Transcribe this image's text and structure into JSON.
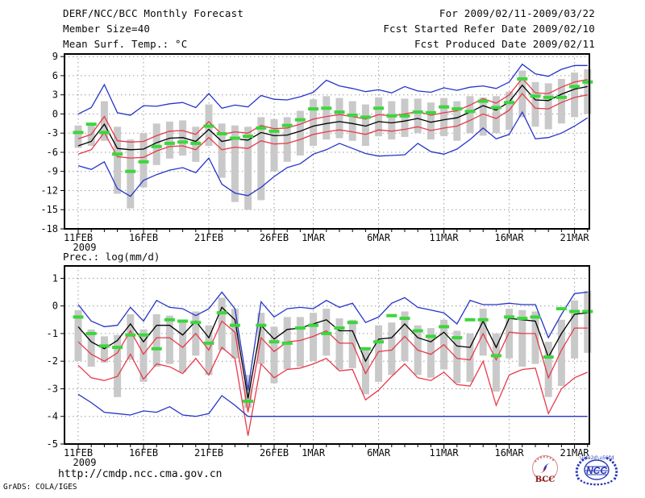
{
  "header": {
    "left_lines": [
      "DERF/NCC/BCC Monthly Forecast",
      "Member Size=40",
      "Mean Surf. Temp.: °C"
    ],
    "right_lines": [
      "For 2009/02/11-2009/03/22",
      "Fcst Started Refer Date 2009/02/10",
      "Fcst Produced Date 2009/02/11"
    ]
  },
  "footer": {
    "url": "http://cmdp.ncc.cma.gov.cn",
    "credit": "GrADS: COLA/IGES",
    "logos": {
      "bcc": "BCC",
      "ncc": "NCC"
    }
  },
  "colors": {
    "blue": "#2535c9",
    "red": "#e8394a",
    "green": "#3cd63c",
    "bar": "#c9c9c9",
    "grid": "#9b9b9b",
    "frame": "#000000",
    "logo_red": "#cc2222",
    "logo_dark_red": "#8b2020",
    "logo_blue": "#2a3ab5"
  },
  "chart_data": [
    {
      "type": "line",
      "name": "mean-surface-temperature",
      "title": "Mean Surf. Temp.: °C",
      "ylabel": "degC",
      "ylim": [
        -18,
        9.4
      ],
      "yticks": [
        9,
        6,
        3,
        0,
        -3,
        -6,
        -9,
        -12,
        -15,
        -18
      ],
      "x_tick_labels": [
        "11FEB",
        "16FEB",
        "21FEB",
        "26FEB",
        "1MAR",
        "6MAR",
        "11MAR",
        "16MAR",
        "21MAR"
      ],
      "x_tick_days": [
        0,
        5,
        10,
        15,
        18,
        23,
        28,
        33,
        38
      ],
      "x_sublabel": "2009",
      "n_days": 40,
      "grid": true,
      "legend_position": "none",
      "series": [
        {
          "name": "blue-upper-envelope",
          "color": "blue",
          "values": [
            0.0,
            1.0,
            4.6,
            0.2,
            -0.2,
            1.3,
            1.2,
            1.6,
            1.8,
            1.0,
            3.2,
            0.9,
            1.4,
            1.1,
            2.9,
            2.3,
            2.2,
            2.7,
            3.4,
            5.3,
            4.4,
            4.0,
            3.5,
            3.8,
            3.3,
            4.3,
            3.6,
            3.4,
            4.1,
            3.7,
            4.2,
            4.4,
            4.0,
            5.0,
            7.8,
            6.3,
            5.9,
            7.0,
            7.6,
            7.6
          ]
        },
        {
          "name": "red-upper-band",
          "color": "red",
          "values": [
            -3.9,
            -3.2,
            -0.4,
            -4.2,
            -4.4,
            -4.3,
            -3.4,
            -2.7,
            -2.6,
            -3.2,
            -1.2,
            -3.2,
            -2.8,
            -3.0,
            -1.8,
            -2.3,
            -2.2,
            -1.6,
            -0.8,
            -0.4,
            -0.1,
            -0.4,
            -0.8,
            -0.1,
            -0.3,
            0.0,
            0.4,
            -0.2,
            0.2,
            0.5,
            1.4,
            2.4,
            1.7,
            3.0,
            5.6,
            3.3,
            3.2,
            4.2,
            5.0,
            5.4
          ]
        },
        {
          "name": "black-ensemble-mean",
          "color": "frame",
          "values": [
            -5.0,
            -4.3,
            -1.6,
            -5.4,
            -5.6,
            -5.5,
            -4.5,
            -3.8,
            -3.7,
            -4.3,
            -2.4,
            -4.3,
            -3.9,
            -4.1,
            -2.9,
            -3.4,
            -3.3,
            -2.7,
            -1.9,
            -1.5,
            -1.2,
            -1.5,
            -1.9,
            -1.2,
            -1.4,
            -1.1,
            -0.7,
            -1.3,
            -0.9,
            -0.6,
            0.3,
            1.3,
            0.6,
            1.9,
            4.5,
            2.2,
            2.1,
            3.1,
            3.9,
            4.3
          ]
        },
        {
          "name": "red-lower-band",
          "color": "red",
          "values": [
            -6.3,
            -5.6,
            -2.9,
            -6.7,
            -6.9,
            -6.8,
            -5.8,
            -5.1,
            -5.0,
            -5.6,
            -3.7,
            -5.6,
            -5.2,
            -5.4,
            -4.2,
            -4.7,
            -4.6,
            -4.0,
            -3.2,
            -2.8,
            -2.5,
            -2.8,
            -3.2,
            -2.5,
            -2.7,
            -2.4,
            -2.0,
            -2.6,
            -2.2,
            -1.9,
            -1.0,
            0.0,
            -0.7,
            0.6,
            3.2,
            0.9,
            0.8,
            1.8,
            2.6,
            3.0
          ]
        },
        {
          "name": "blue-lower-envelope",
          "color": "blue",
          "values": [
            -8.1,
            -8.7,
            -7.5,
            -11.7,
            -12.9,
            -10.4,
            -9.5,
            -8.8,
            -8.4,
            -9.2,
            -6.9,
            -11.0,
            -12.4,
            -12.8,
            -11.5,
            -9.8,
            -8.4,
            -7.8,
            -6.3,
            -5.6,
            -4.6,
            -5.4,
            -6.2,
            -6.6,
            -6.5,
            -6.4,
            -4.6,
            -5.9,
            -6.3,
            -5.5,
            -4.0,
            -2.2,
            -3.9,
            -3.2,
            0.3,
            -3.9,
            -3.7,
            -3.0,
            -1.9,
            -0.6
          ]
        }
      ],
      "markers": {
        "name": "green-dash-markers",
        "color": "green",
        "values": [
          -2.9,
          -1.6,
          -2.9,
          -6.3,
          -9.0,
          -7.5,
          -5.1,
          -4.6,
          -4.4,
          -4.6,
          -1.9,
          -3.1,
          -3.8,
          -3.5,
          -2.2,
          -2.7,
          -1.8,
          -0.9,
          0.8,
          0.9,
          0.3,
          -0.2,
          -0.5,
          0.9,
          -0.3,
          -0.3,
          0.3,
          0.2,
          1.1,
          0.8,
          0.4,
          2.0,
          1.0,
          1.8,
          5.5,
          2.8,
          2.6,
          2.6,
          4.3,
          5.0
        ]
      },
      "bars": {
        "name": "gray-spread-bars",
        "color": "bar",
        "ranges": [
          [
            -5.3,
            -1.8
          ],
          [
            -5.0,
            -1.4
          ],
          [
            -4.2,
            2.0
          ],
          [
            -12.5,
            -2.0
          ],
          [
            -14.8,
            -4.0
          ],
          [
            -11.5,
            -3.0
          ],
          [
            -8.0,
            -1.5
          ],
          [
            -7.0,
            -1.2
          ],
          [
            -6.5,
            -1.0
          ],
          [
            -7.5,
            -2.0
          ],
          [
            -5.0,
            1.5
          ],
          [
            -10.0,
            -1.5
          ],
          [
            -13.8,
            -1.8
          ],
          [
            -15.0,
            -2.0
          ],
          [
            -13.5,
            -0.5
          ],
          [
            -9.0,
            -0.8
          ],
          [
            -7.5,
            -0.5
          ],
          [
            -6.5,
            0.5
          ],
          [
            -5.0,
            2.3
          ],
          [
            -4.0,
            2.8
          ],
          [
            -3.8,
            2.5
          ],
          [
            -4.2,
            2.0
          ],
          [
            -5.0,
            1.5
          ],
          [
            -3.5,
            2.6
          ],
          [
            -4.0,
            2.0
          ],
          [
            -3.6,
            2.4
          ],
          [
            -3.0,
            2.4
          ],
          [
            -4.0,
            1.8
          ],
          [
            -3.5,
            2.5
          ],
          [
            -4.2,
            2.0
          ],
          [
            -3.0,
            2.8
          ],
          [
            -3.4,
            2.6
          ],
          [
            -3.0,
            2.8
          ],
          [
            -2.5,
            3.5
          ],
          [
            -0.5,
            6.8
          ],
          [
            -2.0,
            5.0
          ],
          [
            -2.4,
            4.8
          ],
          [
            -1.5,
            5.5
          ],
          [
            -0.5,
            6.5
          ],
          [
            0.0,
            7.0
          ]
        ]
      }
    },
    {
      "type": "line",
      "name": "precipitation",
      "title": "Prec.: log(mm/d)",
      "ylabel": "log(mm/d)",
      "ylim": [
        -5,
        1.45
      ],
      "yticks": [
        1,
        0,
        -1,
        -2,
        -3,
        -4,
        -5
      ],
      "x_tick_labels": [
        "11FEB",
        "16FEB",
        "21FEB",
        "26FEB",
        "1MAR",
        "6MAR",
        "11MAR",
        "16MAR",
        "21MAR"
      ],
      "x_tick_days": [
        0,
        5,
        10,
        15,
        18,
        23,
        28,
        33,
        38
      ],
      "x_sublabel": "2009",
      "n_days": 40,
      "grid": true,
      "legend_position": "none",
      "series": [
        {
          "name": "blue-upper-envelope",
          "color": "blue",
          "values": [
            0.05,
            -0.55,
            -0.75,
            -0.7,
            -0.05,
            -0.55,
            0.2,
            -0.05,
            -0.1,
            -0.35,
            -0.1,
            0.5,
            -0.1,
            -3.05,
            0.15,
            -0.4,
            -0.1,
            -0.05,
            -0.1,
            0.2,
            -0.05,
            0.1,
            -0.6,
            -0.4,
            0.1,
            0.3,
            -0.05,
            -0.15,
            -0.25,
            -0.65,
            0.2,
            0.05,
            0.05,
            0.1,
            0.05,
            0.05,
            -1.15,
            -0.3,
            0.45,
            0.5
          ]
        },
        {
          "name": "black-ensemble-mean",
          "color": "frame",
          "values": [
            -0.75,
            -1.3,
            -1.55,
            -1.25,
            -0.65,
            -1.3,
            -0.7,
            -0.7,
            -1.05,
            -0.55,
            -1.15,
            -0.05,
            -0.5,
            -3.35,
            -0.7,
            -1.2,
            -0.85,
            -0.8,
            -0.65,
            -0.5,
            -0.9,
            -0.9,
            -2.0,
            -1.2,
            -1.15,
            -0.65,
            -1.15,
            -1.3,
            -0.95,
            -1.45,
            -1.5,
            -0.55,
            -1.5,
            -0.45,
            -0.5,
            -0.55,
            -1.85,
            -1.0,
            -0.3,
            -0.25
          ]
        },
        {
          "name": "red-upper-band",
          "color": "red",
          "values": [
            -1.3,
            -1.75,
            -2.0,
            -1.7,
            -0.9,
            -1.75,
            -1.15,
            -1.15,
            -1.5,
            -1.0,
            -1.6,
            -0.55,
            -0.95,
            -3.85,
            -1.15,
            -1.65,
            -1.3,
            -1.25,
            -1.1,
            -0.9,
            -1.35,
            -1.35,
            -2.45,
            -1.65,
            -1.6,
            -1.1,
            -1.6,
            -1.75,
            -1.4,
            -1.9,
            -1.95,
            -1.0,
            -1.95,
            -0.95,
            -1.0,
            -1.0,
            -2.6,
            -1.6,
            -0.8,
            -0.8
          ]
        },
        {
          "name": "red-lower-band",
          "color": "red",
          "values": [
            -2.15,
            -2.6,
            -2.7,
            -2.55,
            -1.75,
            -2.65,
            -2.1,
            -2.2,
            -2.45,
            -1.9,
            -2.5,
            -1.5,
            -1.9,
            -4.7,
            -2.1,
            -2.6,
            -2.3,
            -2.25,
            -2.1,
            -1.9,
            -2.35,
            -2.3,
            -3.4,
            -3.05,
            -2.55,
            -2.1,
            -2.6,
            -2.7,
            -2.4,
            -2.85,
            -2.9,
            -2.0,
            -3.6,
            -2.5,
            -2.3,
            -2.25,
            -3.9,
            -3.0,
            -2.6,
            -2.4
          ]
        },
        {
          "name": "blue-lower-envelope",
          "color": "blue",
          "values": [
            -3.2,
            -3.5,
            -3.85,
            -3.9,
            -3.95,
            -3.8,
            -3.85,
            -3.65,
            -3.95,
            -4.0,
            -3.9,
            -3.25,
            -3.6,
            -4.0,
            -4.0,
            -4.0,
            -4.0,
            -4.0,
            -4.0,
            -4.0,
            -4.0,
            -4.0,
            -4.0,
            -4.0,
            -4.0,
            -4.0,
            -4.0,
            -4.0,
            -4.0,
            -4.0,
            -4.0,
            -4.0,
            -4.0,
            -4.0,
            -4.0,
            -4.0,
            -4.0,
            -4.0,
            -4.0,
            -4.0
          ]
        }
      ],
      "markers": {
        "name": "green-dash-markers",
        "color": "green",
        "values": [
          -0.4,
          -1.0,
          -1.45,
          -1.5,
          -1.05,
          -1.05,
          -1.55,
          -0.5,
          -0.55,
          -0.6,
          -1.35,
          -0.25,
          -0.7,
          -3.45,
          -0.7,
          -1.3,
          -1.35,
          -0.8,
          -0.7,
          -1.0,
          -0.8,
          -0.6,
          -1.55,
          -1.3,
          -0.35,
          -0.45,
          -0.9,
          -1.1,
          -0.75,
          -1.15,
          -0.5,
          -0.5,
          -1.8,
          -0.4,
          -0.45,
          -0.4,
          -1.85,
          -0.1,
          -0.2,
          -0.2
        ]
      },
      "bars": {
        "name": "gray-spread-bars",
        "color": "bar",
        "ranges": [
          [
            -2.0,
            -0.15
          ],
          [
            -2.2,
            -0.85
          ],
          [
            -2.05,
            -1.1
          ],
          [
            -3.3,
            -1.05
          ],
          [
            -1.95,
            -0.3
          ],
          [
            -2.75,
            -0.85
          ],
          [
            -2.2,
            -0.3
          ],
          [
            -2.1,
            -0.35
          ],
          [
            -2.4,
            -0.6
          ],
          [
            -1.8,
            -0.2
          ],
          [
            -2.5,
            -0.7
          ],
          [
            -1.6,
            0.3
          ],
          [
            -1.9,
            -0.1
          ],
          [
            -3.7,
            -2.5
          ],
          [
            -2.1,
            -0.25
          ],
          [
            -2.8,
            -0.75
          ],
          [
            -2.3,
            -0.4
          ],
          [
            -2.2,
            -0.4
          ],
          [
            -2.0,
            -0.25
          ],
          [
            -1.8,
            -0.1
          ],
          [
            -2.3,
            -0.45
          ],
          [
            -2.25,
            -0.5
          ],
          [
            -3.2,
            -1.5
          ],
          [
            -2.75,
            -0.7
          ],
          [
            -2.5,
            -0.6
          ],
          [
            -2.0,
            -0.2
          ],
          [
            -2.5,
            -0.7
          ],
          [
            -2.6,
            -0.8
          ],
          [
            -2.3,
            -0.5
          ],
          [
            -2.8,
            -0.9
          ],
          [
            -2.75,
            -1.0
          ],
          [
            -1.8,
            -0.1
          ],
          [
            -3.1,
            -1.0
          ],
          [
            -1.9,
            -0.1
          ],
          [
            -2.2,
            -0.15
          ],
          [
            -2.1,
            -0.2
          ],
          [
            -3.3,
            -1.3
          ],
          [
            -2.9,
            -0.5
          ],
          [
            -1.9,
            0.2
          ],
          [
            -1.7,
            0.55
          ]
        ]
      }
    }
  ]
}
